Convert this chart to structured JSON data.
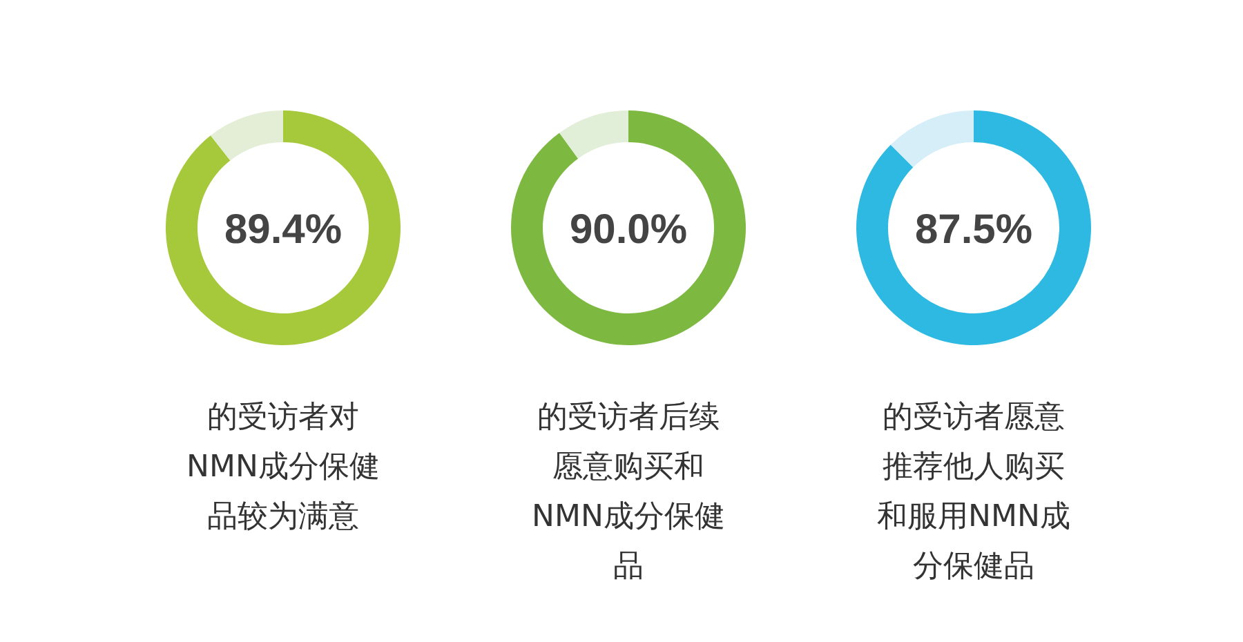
{
  "chart_data": [
    {
      "type": "donut",
      "title": "的受访者对NMN成分保健品较为满意",
      "categories": [
        null,
        null
      ],
      "values": [
        89.4,
        10.6
      ],
      "colors": [
        "#a6c93b",
        "#e4eed7"
      ],
      "value_labels": [
        "89.4%",
        null
      ]
    },
    {
      "type": "donut",
      "title": "的受访者后续愿意购买和NMN成分保健品",
      "categories": [
        null,
        null
      ],
      "values": [
        90.0,
        10.0
      ],
      "colors": [
        "#7db941",
        "#e2efd8"
      ],
      "value_labels": [
        "90.0%",
        null
      ]
    },
    {
      "type": "donut",
      "title": "的受访者愿意推荐他人购买和服用NMN成分保健品",
      "categories": [
        null,
        null
      ],
      "values": [
        87.5,
        12.5
      ],
      "colors": [
        "#2db9e2",
        "#d5eef8"
      ],
      "value_labels": [
        "87.5%",
        null
      ]
    }
  ]
}
